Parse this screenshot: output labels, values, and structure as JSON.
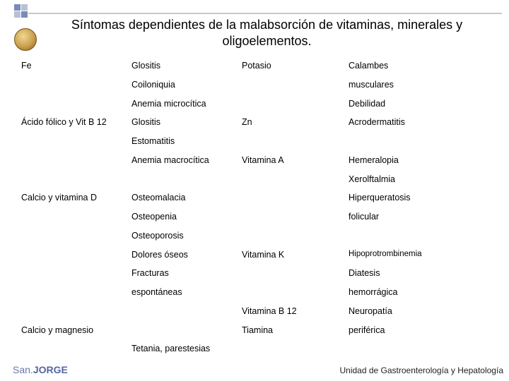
{
  "title": "Síntomas dependientes de la malabsorción de vitaminas, minerales y oligoelementos.",
  "g1": {
    "left": "Fe",
    "mid": [
      "Glositis",
      "Coiloniquia",
      "Anemia microcítica"
    ],
    "right_n": "Potasio",
    "right_s": [
      "Calambes",
      "musculares",
      "Debilidad"
    ]
  },
  "g2": {
    "left": "Ácido fólico y Vit B 12",
    "mid": [
      "Glositis",
      "Estomatitis",
      "Anemia macrocítica"
    ],
    "right_n": "Zn",
    "right_s": [
      "Acrodermatitis"
    ],
    "right_n2": "Vitamina A",
    "right_s2": [
      "Hemeralopia",
      "Xerolftalmia"
    ]
  },
  "g3": {
    "left": "Calcio y vitamina D",
    "mid": [
      "Osteomalacia",
      "Osteopenia",
      "Osteoporosis",
      "Dolores óseos",
      "Fracturas",
      "espontáneas"
    ],
    "right_s": [
      "Hiperqueratosis",
      "folicular"
    ],
    "right_n2": "Vitamina K",
    "right_s2": [
      "Hipoprotrombinemia",
      "Diatesis",
      "hemorrágica"
    ]
  },
  "g4": {
    "left": "Calcio y magnesio",
    "mid": [
      "Tetania, parestesias"
    ],
    "right_n1": "Vitamina B 12",
    "right_n2": "Tiamina",
    "right_s": [
      "Neuropatía",
      "periférica"
    ]
  },
  "footer": {
    "brand1": "San.",
    "brand2": "JORGE",
    "unit": "Unidad de Gastroenterología y Hepatología"
  }
}
